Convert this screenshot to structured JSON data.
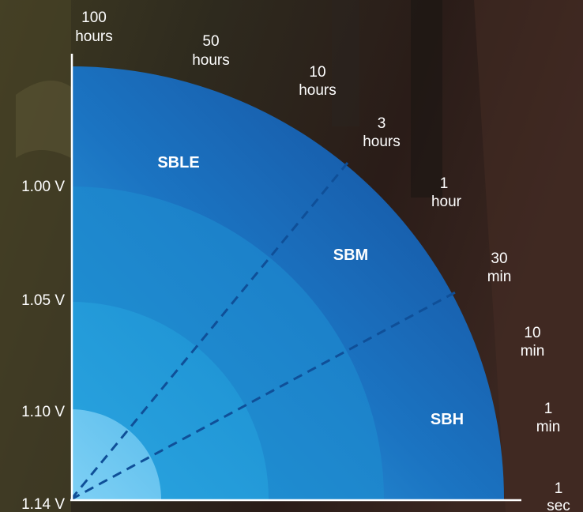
{
  "voltage_labels": [
    "1.00 V",
    "1.05 V",
    "1.10 V",
    "1.14 V"
  ],
  "time_labels": [
    [
      "100",
      "hours"
    ],
    [
      "50",
      "hours"
    ],
    [
      "10",
      "hours"
    ],
    [
      "3",
      "hours"
    ],
    [
      "1",
      "hour"
    ],
    [
      "30",
      "min"
    ],
    [
      "10",
      "min"
    ],
    [
      "1",
      "min"
    ],
    [
      "1",
      "sec"
    ]
  ],
  "zones": [
    "SBLE",
    "SBM",
    "SBH"
  ],
  "colors": {
    "ring_outer": "#1c5fae",
    "ring_2": "#1d84cc",
    "ring_3": "#26a0dc",
    "ring_inner": "#6fc6f0",
    "dashed": "#0f4f98",
    "text": "#ffffff"
  }
}
